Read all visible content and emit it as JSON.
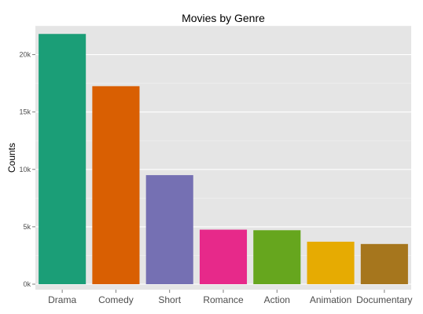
{
  "chart_data": {
    "type": "bar",
    "title": "Movies by Genre",
    "xlabel": "",
    "ylabel": "Counts",
    "categories": [
      "Drama",
      "Comedy",
      "Short",
      "Romance",
      "Action",
      "Animation",
      "Documentary"
    ],
    "values": [
      21800,
      17250,
      9500,
      4750,
      4700,
      3700,
      3500
    ],
    "ylim": [
      0,
      22500
    ],
    "yticks": [
      0,
      5000,
      10000,
      15000,
      20000
    ],
    "ytick_labels": [
      "0k",
      "5k",
      "10k",
      "15k",
      "20k"
    ],
    "grid": true,
    "legend": "none",
    "colors": [
      "#1b9e77",
      "#d95f02",
      "#7570b3",
      "#e7298a",
      "#66a61e",
      "#e6ab02",
      "#a6761d"
    ],
    "panel_background": "#e5e5e5",
    "grid_color": "#ffffff"
  }
}
